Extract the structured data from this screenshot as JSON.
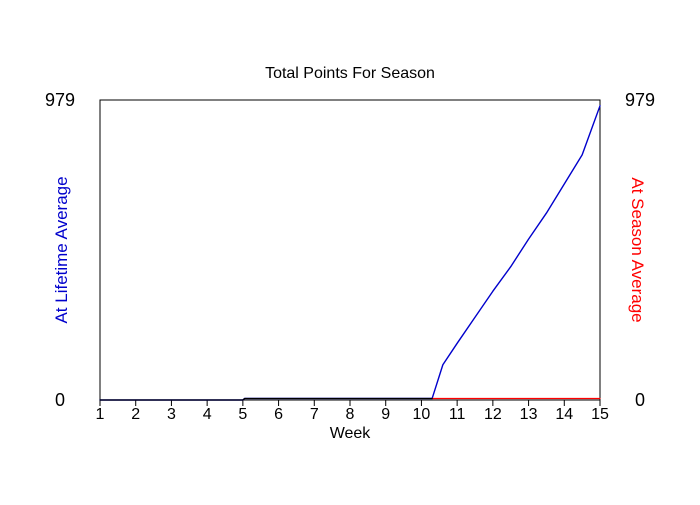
{
  "chart_data": {
    "type": "line",
    "title": "Total Points For Season",
    "xlabel": "Week",
    "ylabel_left": "At Lifetime Average",
    "ylabel_right": "At Season Average",
    "x_ticks": [
      "1",
      "2",
      "3",
      "4",
      "5",
      "6",
      "7",
      "8",
      "9",
      "10",
      "11",
      "12",
      "13",
      "14",
      "15"
    ],
    "xlim": [
      1,
      15
    ],
    "ylim": [
      0,
      979
    ],
    "y_ticks_left": [
      "0",
      "979"
    ],
    "y_ticks_right": [
      "0",
      "979"
    ],
    "grid": false,
    "colors": {
      "lifetime": "#0000cc",
      "season": "#ff0000",
      "baseline": "#000000",
      "axis": "#000000",
      "left_label": "#0000cc",
      "right_label": "#ff0000"
    },
    "series": [
      {
        "key": "lifetime",
        "x": [
          1,
          5,
          5.05,
          10.3,
          10.6,
          11,
          11.5,
          12,
          12.5,
          13,
          13.5,
          14,
          14.5,
          15
        ],
        "y": [
          0,
          0,
          5,
          5,
          115,
          185,
          270,
          355,
          435,
          525,
          610,
          705,
          800,
          960
        ]
      },
      {
        "key": "season",
        "x": [
          10.3,
          15
        ],
        "y": [
          5,
          5
        ]
      },
      {
        "key": "baseline",
        "x": [
          1,
          5,
          5.05,
          10.3
        ],
        "y": [
          0,
          0,
          5,
          5
        ]
      }
    ]
  }
}
